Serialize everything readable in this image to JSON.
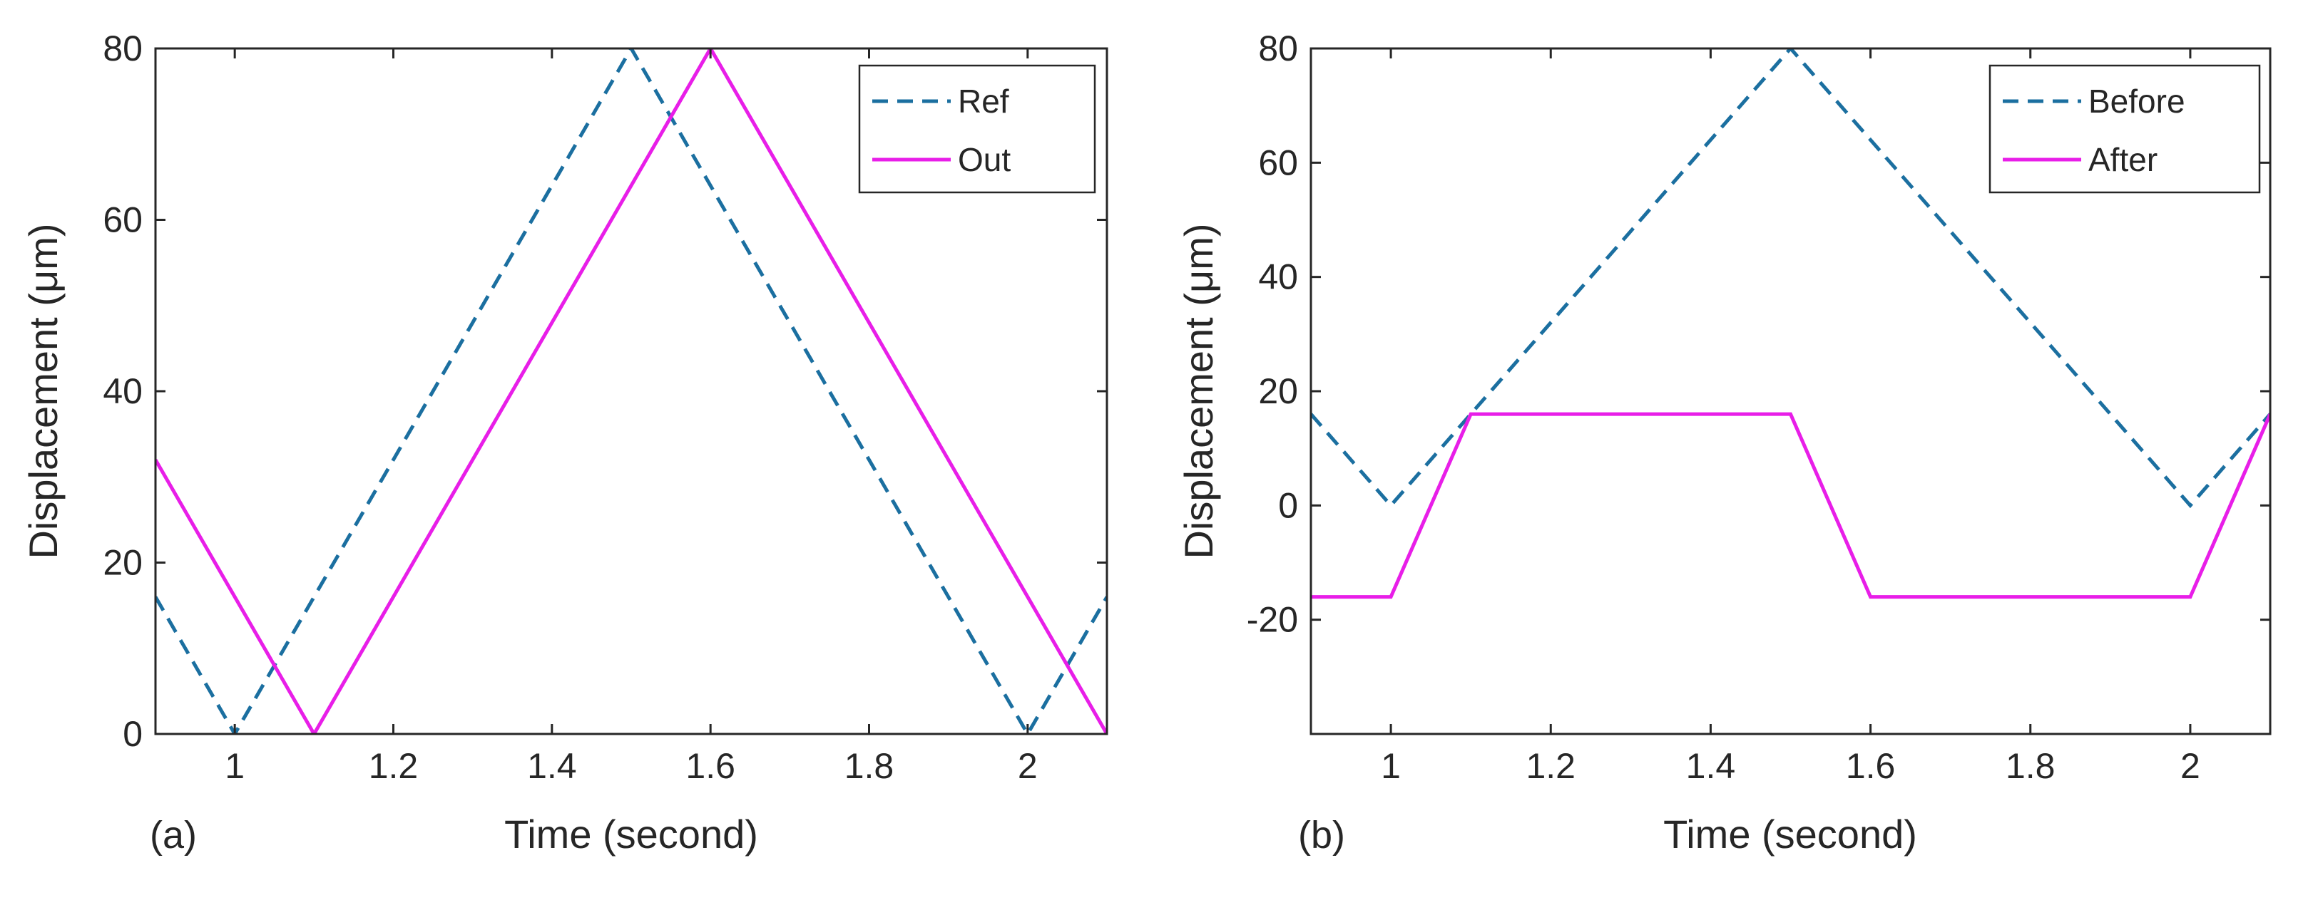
{
  "chart_data": [
    {
      "type": "line",
      "panel_label": "(a)",
      "title": "",
      "xlabel": "Time (second)",
      "ylabel": "Displacement (μm)",
      "xlim": [
        0.9,
        2.1
      ],
      "ylim": [
        0,
        80
      ],
      "xticks": [
        1,
        1.2,
        1.4,
        1.6,
        1.8,
        2
      ],
      "xtick_labels": [
        "1",
        "1.2",
        "1.4",
        "1.6",
        "1.8",
        "2"
      ],
      "yticks": [
        0,
        20,
        40,
        60,
        80
      ],
      "ytick_labels": [
        "0",
        "20",
        "40",
        "60",
        "80"
      ],
      "grid": false,
      "legend_position": "top-right",
      "series": [
        {
          "name": "Ref",
          "color": "#1b6fa0",
          "style": "dashed",
          "x": [
            0.9,
            1.0,
            1.5,
            2.0,
            2.1
          ],
          "y": [
            16,
            0,
            80,
            0,
            16
          ]
        },
        {
          "name": "Out",
          "color": "#e81ee8",
          "style": "solid",
          "x": [
            0.9,
            1.1,
            1.6,
            2.1
          ],
          "y": [
            32,
            0,
            80,
            0
          ]
        }
      ]
    },
    {
      "type": "line",
      "panel_label": "(b)",
      "title": "",
      "xlabel": "Time (second)",
      "ylabel": "Displacement (μm)",
      "xlim": [
        0.9,
        2.1
      ],
      "ylim": [
        -40,
        80
      ],
      "xticks": [
        1,
        1.2,
        1.4,
        1.6,
        1.8,
        2
      ],
      "xtick_labels": [
        "1",
        "1.2",
        "1.4",
        "1.6",
        "1.8",
        "2"
      ],
      "yticks": [
        -20,
        0,
        20,
        40,
        60,
        80
      ],
      "ytick_labels": [
        "-20",
        "0",
        "20",
        "40",
        "60",
        "80"
      ],
      "grid": false,
      "legend_position": "top-right",
      "series": [
        {
          "name": "Before",
          "color": "#1b6fa0",
          "style": "dashed",
          "x": [
            0.9,
            1.0,
            1.5,
            2.0,
            2.1
          ],
          "y": [
            16,
            0,
            80,
            0,
            16
          ]
        },
        {
          "name": "After",
          "color": "#e81ee8",
          "style": "solid",
          "x": [
            0.9,
            1.0,
            1.1,
            1.5,
            1.6,
            2.0,
            2.1
          ],
          "y": [
            -16,
            -16,
            16,
            16,
            -16,
            -16,
            16
          ]
        }
      ]
    }
  ]
}
